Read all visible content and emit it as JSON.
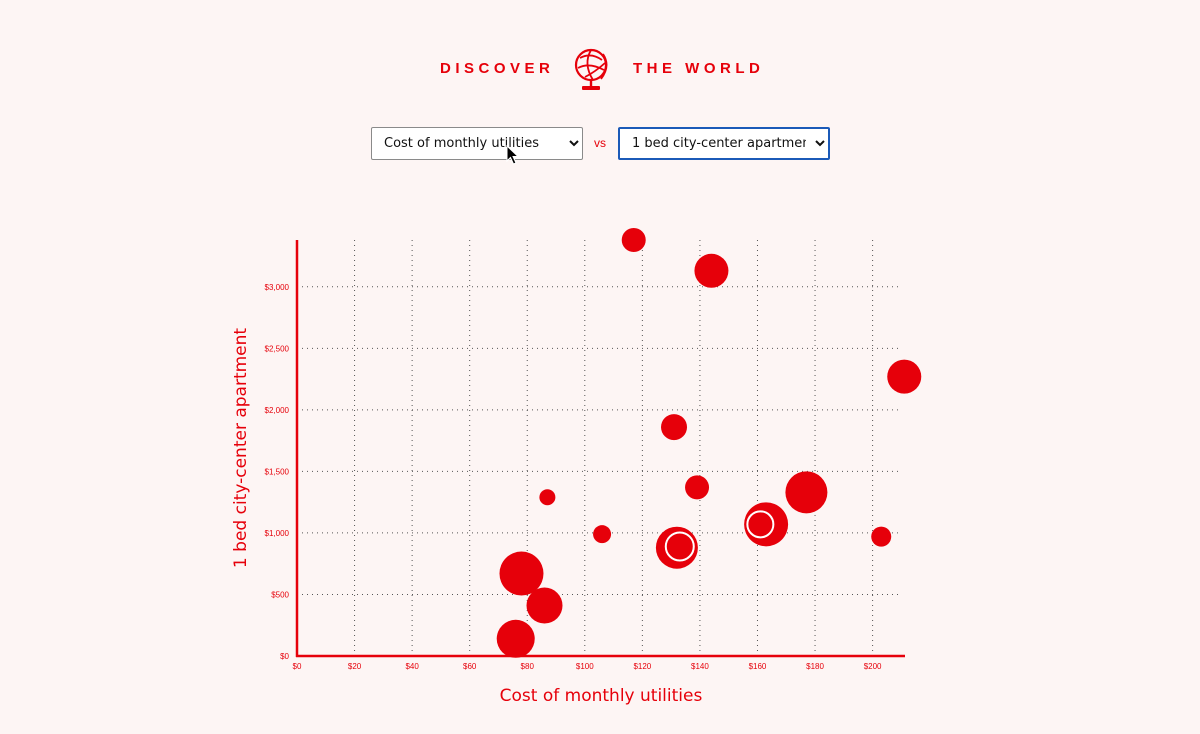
{
  "header": {
    "title_left": "DISCOVER",
    "title_right": "THE WORLD",
    "logo_icon": "globe-icon"
  },
  "controls": {
    "x_selected": "Cost of monthly utilities",
    "vs_label": "vs",
    "y_selected": "1 bed city-center apartment"
  },
  "colors": {
    "accent": "#e6000a",
    "background": "#fdf5f4",
    "focus": "#1b5ab8"
  },
  "chart_data": {
    "type": "scatter",
    "xlabel": "Cost of monthly utilities",
    "ylabel": "1 bed city-center apartment",
    "xlim": [
      0,
      211
    ],
    "ylim": [
      0,
      3400
    ],
    "x_ticks": [
      0,
      20,
      40,
      60,
      80,
      100,
      120,
      140,
      160,
      180,
      200
    ],
    "x_tick_labels": [
      "$0",
      "$20",
      "$40",
      "$60",
      "$80",
      "$100",
      "$120",
      "$140",
      "$160",
      "$180",
      "$200"
    ],
    "y_ticks": [
      0,
      500,
      1000,
      1500,
      2000,
      2500,
      3000
    ],
    "y_tick_labels": [
      "$0",
      "$500",
      "$1,000",
      "$1,500",
      "$2,000",
      "$2,500",
      "$3,000"
    ],
    "grid": true,
    "points": [
      {
        "x": 117,
        "y": 3380,
        "size": 12
      },
      {
        "x": 144,
        "y": 3130,
        "size": 17
      },
      {
        "x": 211,
        "y": 2270,
        "size": 17
      },
      {
        "x": 131,
        "y": 1860,
        "size": 13
      },
      {
        "x": 139,
        "y": 1370,
        "size": 12
      },
      {
        "x": 177,
        "y": 1330,
        "size": 21
      },
      {
        "x": 87,
        "y": 1290,
        "size": 8
      },
      {
        "x": 106,
        "y": 990,
        "size": 9
      },
      {
        "x": 163,
        "y": 1070,
        "size": 22
      },
      {
        "x": 161,
        "y": 1070,
        "size": 13,
        "outlined": true
      },
      {
        "x": 132,
        "y": 880,
        "size": 21
      },
      {
        "x": 133,
        "y": 890,
        "size": 14,
        "outlined": true
      },
      {
        "x": 203,
        "y": 970,
        "size": 10
      },
      {
        "x": 78,
        "y": 670,
        "size": 22
      },
      {
        "x": 86,
        "y": 410,
        "size": 18
      },
      {
        "x": 76,
        "y": 140,
        "size": 19
      }
    ]
  }
}
